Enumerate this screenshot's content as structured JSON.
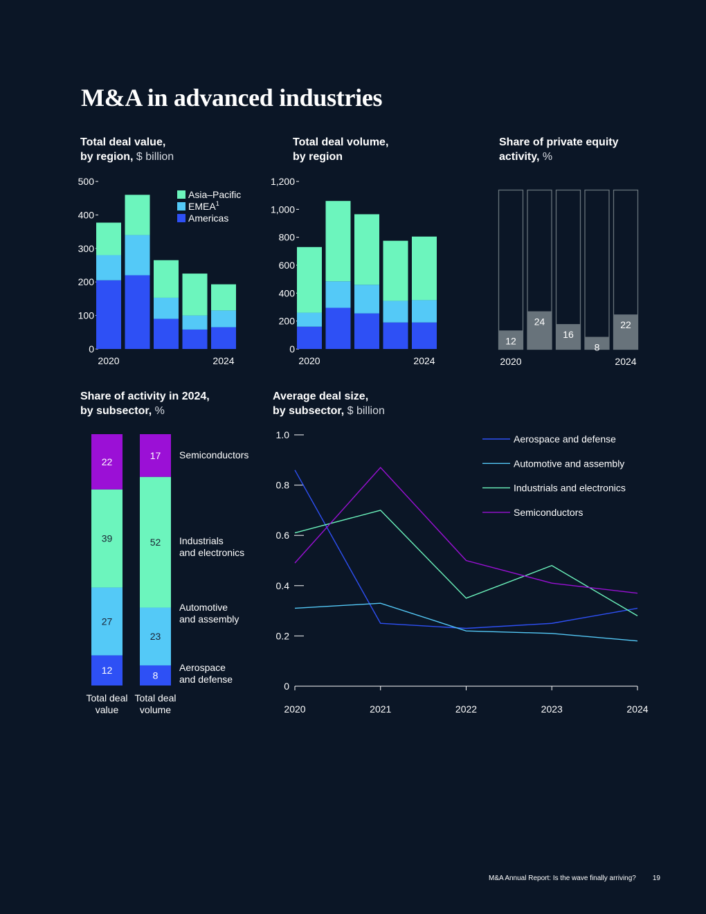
{
  "page": {
    "title": "M&A in advanced industries",
    "footer_text": "M&A Annual Report: Is the wave finally arriving?",
    "page_number": "19"
  },
  "colors": {
    "background": "#0b1626",
    "asia_pacific": "#6cf5bd",
    "emea": "#54c9f7",
    "americas": "#2e50f5",
    "semiconductors": "#9b10d6",
    "industrials": "#6cf5bd",
    "automotive": "#54c9f7",
    "aerospace": "#2e50f5",
    "pe_bar": "#68737b",
    "axis": "#ffffff"
  },
  "chart_data": [
    {
      "id": "deal_value",
      "type": "bar",
      "stacked": true,
      "title": "Total deal value,",
      "subtitle_bold": "by region,",
      "unit": "$ billion",
      "categories": [
        "2020",
        "2021",
        "2022",
        "2023",
        "2024"
      ],
      "x_tick_labels": [
        "2020",
        "",
        "",
        "",
        "2024"
      ],
      "series": [
        {
          "name": "Americas",
          "values": [
            205,
            220,
            90,
            58,
            65
          ]
        },
        {
          "name": "EMEA",
          "values": [
            75,
            120,
            63,
            42,
            50
          ]
        },
        {
          "name": "Asia–Pacific",
          "values": [
            97,
            120,
            112,
            125,
            78
          ]
        }
      ],
      "legend": [
        "Asia–Pacific",
        "EMEA",
        "Americas"
      ],
      "legend_footnote": "1",
      "ylim": [
        0,
        500
      ],
      "yticks": [
        "0",
        "100",
        "200",
        "300",
        "400",
        "500"
      ]
    },
    {
      "id": "deal_volume",
      "type": "bar",
      "stacked": true,
      "title": "Total deal volume,",
      "subtitle_bold": "by region",
      "unit": "",
      "categories": [
        "2020",
        "2021",
        "2022",
        "2023",
        "2024"
      ],
      "x_tick_labels": [
        "2020",
        "",
        "",
        "",
        "2024"
      ],
      "series": [
        {
          "name": "Americas",
          "values": [
            160,
            295,
            255,
            190,
            190
          ]
        },
        {
          "name": "EMEA",
          "values": [
            100,
            190,
            205,
            155,
            160
          ]
        },
        {
          "name": "Asia–Pacific",
          "values": [
            470,
            575,
            505,
            430,
            455
          ]
        }
      ],
      "ylim": [
        0,
        1200
      ],
      "yticks": [
        "0",
        "200",
        "400",
        "600",
        "800",
        "1,000",
        "1,200"
      ]
    },
    {
      "id": "pe_share",
      "type": "bar",
      "title": "Share of private equity",
      "subtitle_bold": "activity,",
      "unit": "%",
      "categories": [
        "2020",
        "2021",
        "2022",
        "2023",
        "2024"
      ],
      "x_tick_labels": [
        "2020",
        "",
        "",
        "",
        "2024"
      ],
      "values": [
        12,
        24,
        16,
        8,
        22
      ],
      "labels": [
        "12",
        "24",
        "16",
        "8",
        "22"
      ],
      "ylim": [
        0,
        100
      ]
    },
    {
      "id": "subsector_share",
      "type": "bar",
      "stacked": true,
      "percent": true,
      "title": "Share of activity in 2024,",
      "subtitle_bold": "by subsector,",
      "unit": "%",
      "categories": [
        "Total deal value",
        "Total deal volume"
      ],
      "category_lines": [
        [
          "Total deal",
          "value"
        ],
        [
          "Total deal",
          "volume"
        ]
      ],
      "series": [
        {
          "name": "Aerospace and defense",
          "label_lines": [
            "Aerospace",
            "and defense"
          ],
          "values": [
            12,
            8
          ]
        },
        {
          "name": "Automotive and assembly",
          "label_lines": [
            "Automotive",
            "and assembly"
          ],
          "values": [
            27,
            23
          ]
        },
        {
          "name": "Industrials and electronics",
          "label_lines": [
            "Industrials",
            "and electronics"
          ],
          "values": [
            39,
            52
          ]
        },
        {
          "name": "Semiconductors",
          "label_lines": [
            "Semiconductors"
          ],
          "values": [
            22,
            17
          ]
        }
      ]
    },
    {
      "id": "avg_deal_size",
      "type": "line",
      "title": "Average deal size,",
      "subtitle_bold": "by subsector,",
      "unit": "$ billion",
      "x": [
        "2020",
        "2021",
        "2022",
        "2023",
        "2024"
      ],
      "series": [
        {
          "name": "Aerospace and defense",
          "values": [
            0.86,
            0.25,
            0.23,
            0.25,
            0.31
          ]
        },
        {
          "name": "Automotive and assembly",
          "values": [
            0.31,
            0.33,
            0.22,
            0.21,
            0.18
          ]
        },
        {
          "name": "Industrials and electronics",
          "values": [
            0.61,
            0.7,
            0.35,
            0.48,
            0.28
          ]
        },
        {
          "name": "Semiconductors",
          "values": [
            0.49,
            0.87,
            0.5,
            0.41,
            0.37
          ]
        }
      ],
      "ylim": [
        0,
        1.0
      ],
      "yticks": [
        "0",
        "0.2",
        "0.4",
        "0.6",
        "0.8",
        "1.0"
      ],
      "legend": [
        "Aerospace and defense",
        "Automotive and assembly",
        "Industrials and electronics",
        "Semiconductors"
      ]
    }
  ]
}
